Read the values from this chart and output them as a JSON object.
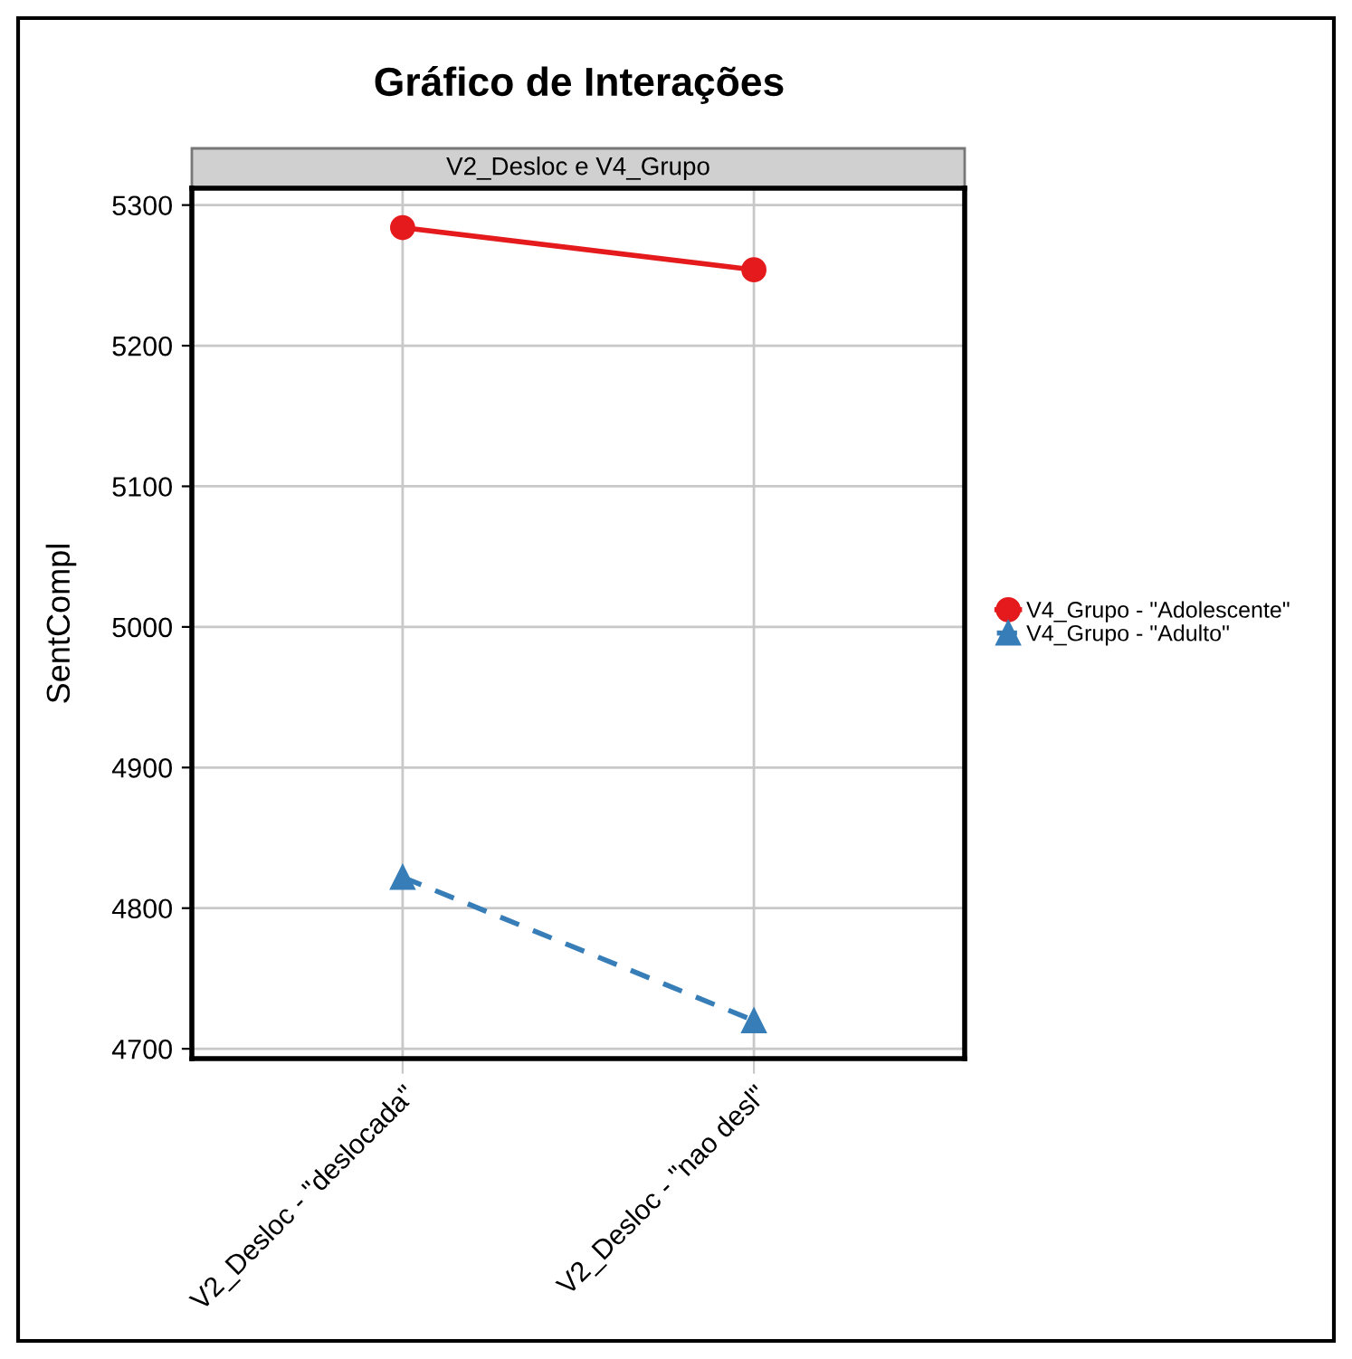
{
  "chart_data": {
    "type": "line",
    "title": "Gráfico de Interações",
    "subtitle": "V2_Desloc e V4_Grupo",
    "ylabel": "SentCompl",
    "categories": [
      "V2_Desloc - \"deslocada\"",
      "V2_Desloc - \"nao desl\""
    ],
    "series": [
      {
        "name": "V4_Grupo - \"Adolescente\"",
        "color": "#e41a1c",
        "values": [
          5284,
          5254
        ],
        "marker": "circle",
        "line_style": "solid"
      },
      {
        "name": "V4_Grupo - \"Adulto\"",
        "color": "#377eb8",
        "values": [
          4822,
          4720
        ],
        "marker": "triangle",
        "line_style": "dashed"
      }
    ],
    "ylim": [
      4693,
      5312
    ],
    "yticks": [
      4700,
      4800,
      4900,
      5000,
      5100,
      5200,
      5300
    ],
    "grid": true,
    "legend": "right"
  }
}
